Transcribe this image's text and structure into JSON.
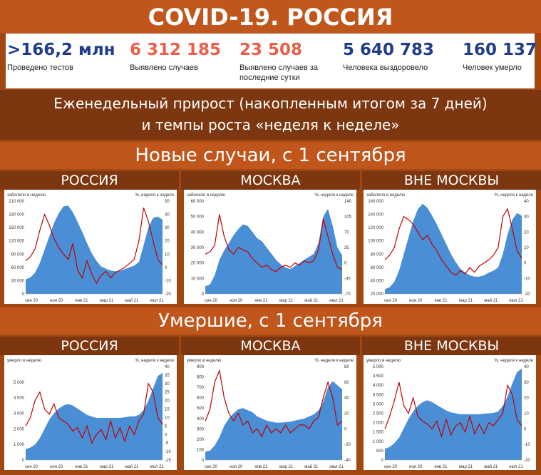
{
  "title": "COVID-19. РОССИЯ",
  "stats": [
    {
      "value": ">166,2 млн",
      "label": "Проведено тестов",
      "color": "#1f3d8a"
    },
    {
      "value": "6 312 185",
      "label": "Выявлено случаев",
      "color": "#e8604a"
    },
    {
      "value": "23 508",
      "label": "Выявлено случаев за последние сутки",
      "color": "#e8604a"
    },
    {
      "value": "5 640 783",
      "label": "Человека выздоровело",
      "color": "#1f3d8a"
    },
    {
      "value": "160 137",
      "label": "Человек умерло",
      "color": "#1f3d8a"
    }
  ],
  "subtitle_lines": [
    "Еженедельный прирост (накопленным итогом за 7 дней)",
    "и темпы роста «неделя к неделе»"
  ],
  "sections": {
    "cases": "Новые случаи, с 1 сентября",
    "deaths": "Умершие, с 1 сентября"
  },
  "colors": {
    "area": "#4a8fd6",
    "line": "#c00000",
    "accent": "#c0561c",
    "dark": "#7d3710"
  },
  "chart_data": [
    {
      "type": "area",
      "group": "cases",
      "region": "РОССИЯ",
      "ylabel": "заболело в неделю",
      "y2label": "%, неделя к неделе",
      "ylim": [
        0,
        210000
      ],
      "yticks": [
        "0",
        "30 000",
        "60 000",
        "90 000",
        "120 000",
        "150 000",
        "180 000",
        "210 000"
      ],
      "y2lim": [
        -20,
        50
      ],
      "y2ticks": [
        "-20",
        "-10",
        "0",
        "10",
        "20",
        "30",
        "40",
        "50"
      ],
      "xticks": [
        "сен 20",
        "ноя 20",
        "янв 21",
        "мар 21",
        "май 21",
        "июл 21"
      ],
      "series": [
        {
          "kind": "area",
          "values": [
            33000,
            37000,
            48000,
            70000,
            100000,
            130000,
            160000,
            182000,
            198000,
            200000,
            185000,
            163000,
            140000,
            115000,
            92000,
            75000,
            62000,
            57000,
            53000,
            51000,
            52000,
            56000,
            60000,
            64000,
            72000,
            110000,
            150000,
            172000,
            175000,
            168000
          ]
        },
        {
          "kind": "line",
          "values": [
            5,
            8,
            14,
            28,
            40,
            32,
            22,
            15,
            10,
            6,
            18,
            -2,
            -8,
            5,
            -5,
            -12,
            -6,
            -3,
            -8,
            -4,
            -2,
            0,
            3,
            6,
            20,
            45,
            35,
            20,
            6,
            2
          ]
        }
      ]
    },
    {
      "type": "area",
      "group": "cases",
      "region": "МОСКВА",
      "ylabel": "заболело в неделю",
      "y2label": "%, неделя к неделе",
      "ylim": [
        0,
        60000
      ],
      "yticks": [
        "0",
        "10 000",
        "20 000",
        "30 000",
        "40 000",
        "50 000",
        "60 000"
      ],
      "y2lim": [
        -70,
        140
      ],
      "y2ticks": [
        "-70",
        "-35",
        "0",
        "35",
        "70",
        "105",
        "140"
      ],
      "xticks": [
        "сен 20",
        "ноя 20",
        "янв 21",
        "мар 21",
        "май 21",
        "июл 21"
      ],
      "series": [
        {
          "kind": "area",
          "values": [
            5000,
            6000,
            12000,
            22000,
            28000,
            33000,
            38000,
            42000,
            45000,
            44000,
            40000,
            36000,
            34000,
            30000,
            26000,
            22000,
            19000,
            17000,
            16000,
            18000,
            20000,
            22000,
            24000,
            26000,
            33000,
            50000,
            55000,
            44000,
            30000,
            25000
          ]
        },
        {
          "kind": "line",
          "values": [
            20,
            25,
            40,
            110,
            60,
            30,
            20,
            35,
            30,
            25,
            10,
            0,
            -10,
            -5,
            -15,
            -20,
            -10,
            -5,
            -10,
            0,
            -5,
            5,
            0,
            5,
            30,
            100,
            60,
            20,
            -10,
            -15
          ]
        }
      ]
    },
    {
      "type": "area",
      "group": "cases",
      "region": "ВНЕ МОСКВЫ",
      "ylabel": "заболело в неделю",
      "y2label": "%, неделя к неделе",
      "ylim": [
        20000,
        160000
      ],
      "yticks": [
        "20 000",
        "40 000",
        "60 000",
        "80 000",
        "100 000",
        "120 000",
        "140 000",
        "160 000"
      ],
      "y2lim": [
        -20,
        40
      ],
      "y2ticks": [
        "-20",
        "-10",
        "0",
        "10",
        "20",
        "30",
        "40"
      ],
      "xticks": [
        "сен 20",
        "ноя 20",
        "янв 21",
        "мар 21",
        "май 21",
        "июл 21"
      ],
      "series": [
        {
          "kind": "area",
          "values": [
            27000,
            30000,
            38000,
            55000,
            80000,
            105000,
            130000,
            148000,
            156000,
            150000,
            138000,
            125000,
            110000,
            95000,
            80000,
            68000,
            58000,
            52000,
            48000,
            46000,
            46000,
            48000,
            52000,
            55000,
            60000,
            80000,
            110000,
            132000,
            142000,
            138000
          ]
        },
        {
          "kind": "line",
          "values": [
            2,
            5,
            10,
            22,
            30,
            28,
            25,
            20,
            15,
            18,
            12,
            8,
            2,
            -2,
            -6,
            -8,
            -5,
            -7,
            -3,
            -6,
            -2,
            0,
            2,
            5,
            10,
            30,
            35,
            22,
            8,
            3
          ]
        }
      ]
    },
    {
      "type": "area",
      "group": "deaths",
      "region": "РОССИЯ",
      "ylabel": "умерло в неделю",
      "y2label": "%, неделя к неделе",
      "ylim": [
        0,
        6000
      ],
      "yticks": [
        "0",
        "1 000",
        "2 000",
        "3 000",
        "4 000",
        "5 000"
      ],
      "y2lim": [
        -15,
        40
      ],
      "y2ticks": [
        "-15",
        "-10",
        "-5",
        "0",
        "5",
        "10",
        "15",
        "20",
        "25",
        "30",
        "35",
        "40"
      ],
      "xticks": [
        "сен 20",
        "ноя 20",
        "янв 21",
        "мар 21",
        "май 21",
        "июл 21"
      ],
      "series": [
        {
          "kind": "area",
          "values": [
            700,
            800,
            1000,
            1400,
            2000,
            2600,
            3000,
            3300,
            3500,
            3600,
            3500,
            3300,
            3100,
            2900,
            2800,
            2700,
            2700,
            2700,
            2700,
            2700,
            2700,
            2750,
            2800,
            2800,
            2900,
            3200,
            3800,
            4600,
            5400,
            5600
          ]
        },
        {
          "kind": "line",
          "values": [
            5,
            10,
            20,
            25,
            15,
            12,
            18,
            10,
            8,
            6,
            2,
            4,
            -2,
            5,
            -5,
            0,
            3,
            -3,
            8,
            -2,
            4,
            -4,
            5,
            0,
            8,
            12,
            30,
            25,
            10,
            6
          ]
        }
      ]
    },
    {
      "type": "area",
      "group": "deaths",
      "region": "МОСКВА",
      "ylabel": "умерло в неделю",
      "y2label": "%, неделя к неделе",
      "ylim": [
        0,
        900
      ],
      "yticks": [
        "0",
        "100",
        "200",
        "300",
        "400",
        "500",
        "600",
        "700",
        "800",
        "900"
      ],
      "y2lim": [
        -40,
        80
      ],
      "y2ticks": [
        "-40",
        "-20",
        "0",
        "20",
        "40",
        "60",
        "80"
      ],
      "xticks": [
        "сен 20",
        "ноя 20",
        "янв 21",
        "мар 21",
        "май 21",
        "июл 21"
      ],
      "series": [
        {
          "kind": "area",
          "values": [
            80,
            90,
            140,
            220,
            330,
            400,
            450,
            490,
            500,
            480,
            460,
            420,
            400,
            380,
            370,
            360,
            360,
            365,
            370,
            380,
            390,
            400,
            420,
            440,
            480,
            560,
            700,
            760,
            720,
            680
          ]
        },
        {
          "kind": "line",
          "values": [
            10,
            25,
            60,
            75,
            40,
            20,
            10,
            20,
            5,
            10,
            -5,
            0,
            -10,
            5,
            -5,
            0,
            -5,
            5,
            -5,
            0,
            5,
            5,
            0,
            10,
            15,
            40,
            60,
            40,
            5,
            10
          ]
        }
      ]
    },
    {
      "type": "area",
      "group": "deaths",
      "region": "ВНЕ МОСКВЫ",
      "ylabel": "умерло в неделю",
      "y2label": "%, неделя к неделе",
      "ylim": [
        0,
        5000
      ],
      "yticks": [
        "0",
        "500",
        "1 000",
        "1 500",
        "2 000",
        "2 500",
        "3 000",
        "3 500",
        "4 000",
        "4 500",
        "5 000"
      ],
      "y2lim": [
        -20,
        40
      ],
      "y2ticks": [
        "-20",
        "-10",
        "0",
        "10",
        "20",
        "30",
        "40"
      ],
      "xticks": [
        "сен 20",
        "ноя 20",
        "янв 21",
        "мар 21",
        "май 21",
        "июл 21"
      ],
      "series": [
        {
          "kind": "area",
          "values": [
            600,
            700,
            900,
            1200,
            1700,
            2200,
            2600,
            2900,
            3100,
            3200,
            3100,
            2950,
            2800,
            2650,
            2550,
            2500,
            2450,
            2450,
            2450,
            2450,
            2450,
            2480,
            2500,
            2520,
            2600,
            2900,
            3400,
            4100,
            4700,
            4900
          ]
        },
        {
          "kind": "line",
          "values": [
            0,
            8,
            18,
            30,
            15,
            10,
            20,
            8,
            5,
            3,
            0,
            5,
            -5,
            6,
            -4,
            2,
            4,
            -2,
            8,
            -3,
            3,
            -3,
            4,
            2,
            6,
            10,
            28,
            22,
            6,
            2
          ]
        }
      ]
    }
  ]
}
